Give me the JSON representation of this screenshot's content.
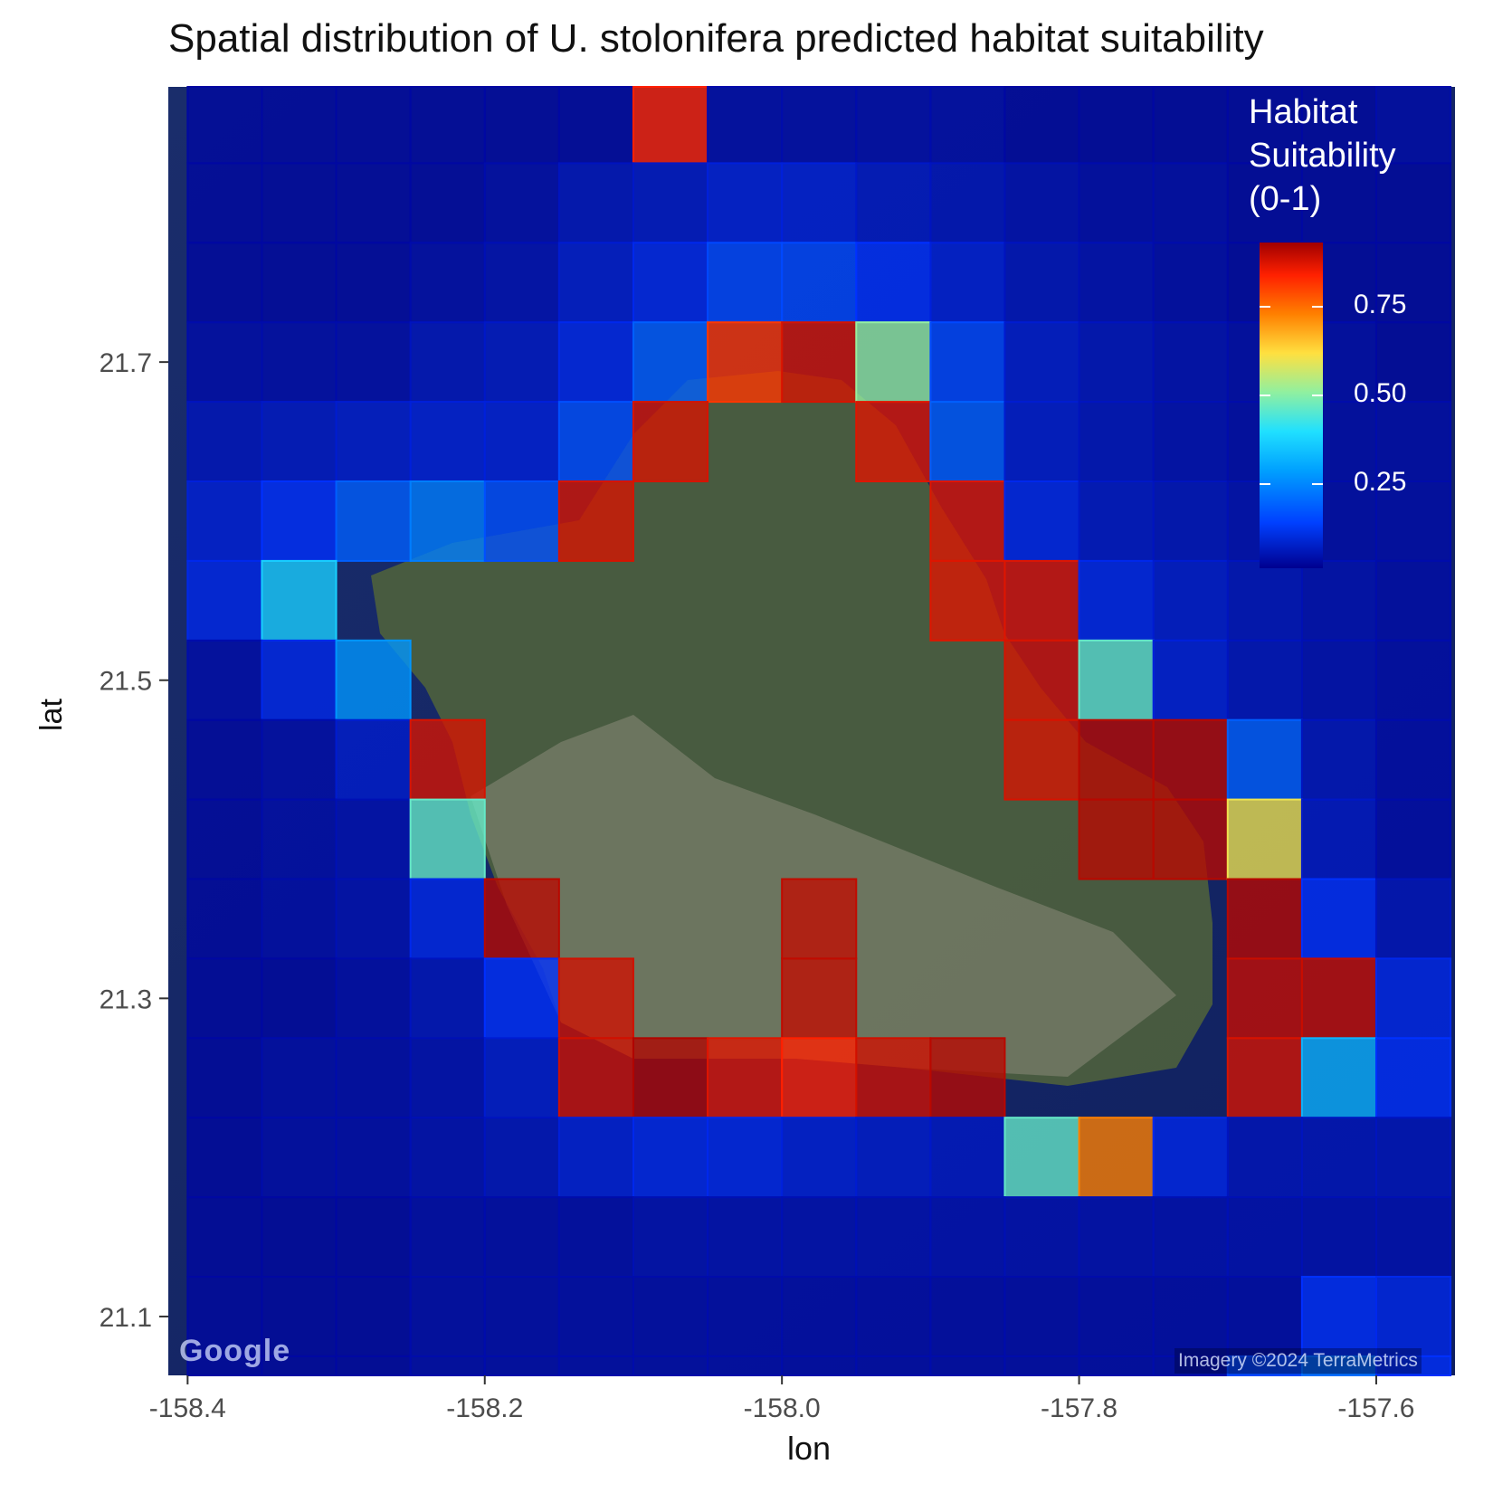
{
  "title": "Spatial distribution of U. stolonifera predicted habitat suitability",
  "attribution": {
    "logo": "Google",
    "imagery": "Imagery ©2024 TerraMetrics"
  },
  "legend": {
    "title_lines": [
      "Habitat",
      "Suitability",
      "(0-1)"
    ],
    "ticks": [
      "0.75",
      "0.50",
      "0.25"
    ],
    "colors": [
      "#00008f",
      "#0040ff",
      "#00a0ff",
      "#20e0ff",
      "#90f0a0",
      "#ffe040",
      "#ff8000",
      "#ff2000",
      "#a00000"
    ]
  },
  "chart_data": {
    "type": "heatmap",
    "title": "Spatial distribution of U. stolonifera predicted habitat suitability",
    "xlabel": "lon",
    "ylabel": "lat",
    "xlim": [
      -158.413,
      -157.547
    ],
    "ylim": [
      21.063,
      21.873
    ],
    "x_ticks": [
      "-158.4",
      "-158.2",
      "-158.0",
      "-157.8",
      "-157.6"
    ],
    "y_ticks": [
      "21.1",
      "21.3",
      "21.5",
      "21.7"
    ],
    "cell_size_deg": 0.05,
    "col_centers_lon": [
      -158.375,
      -158.325,
      -158.275,
      -158.225,
      -158.175,
      -158.125,
      -158.075,
      -158.025,
      -157.975,
      -157.925,
      -157.875,
      -157.825,
      -157.775,
      -157.725,
      -157.675,
      -157.625,
      -157.575
    ],
    "row_centers_lat": [
      21.85,
      21.8,
      21.75,
      21.7,
      21.65,
      21.6,
      21.55,
      21.5,
      21.45,
      21.4,
      21.35,
      21.3,
      21.25,
      21.2,
      21.15,
      21.1,
      21.05
    ],
    "legend_title": "Habitat Suitability (0-1)",
    "legend_range": [
      0,
      1
    ],
    "values": [
      [
        0.02,
        0.02,
        0.02,
        0.02,
        0.02,
        0.02,
        0.88,
        0.03,
        0.03,
        0.03,
        0.03,
        0.02,
        0.02,
        0.02,
        0.02,
        0.02,
        0.03
      ],
      [
        0.02,
        0.02,
        0.02,
        0.02,
        0.03,
        0.05,
        0.06,
        0.08,
        0.08,
        0.06,
        0.05,
        0.04,
        0.03,
        0.03,
        0.02,
        0.02,
        0.02
      ],
      [
        0.02,
        0.02,
        0.02,
        0.03,
        0.04,
        0.07,
        0.1,
        0.15,
        0.15,
        0.12,
        0.08,
        0.05,
        0.04,
        0.03,
        0.02,
        0.02,
        0.02
      ],
      [
        0.03,
        0.03,
        0.03,
        0.05,
        0.06,
        0.1,
        0.18,
        0.85,
        0.93,
        0.5,
        0.15,
        0.07,
        0.05,
        0.04,
        0.03,
        0.03,
        0.02
      ],
      [
        0.05,
        0.06,
        0.07,
        0.08,
        0.08,
        0.16,
        0.93,
        null,
        null,
        0.92,
        0.18,
        0.07,
        0.05,
        0.04,
        0.03,
        0.03,
        0.03
      ],
      [
        0.08,
        0.12,
        0.18,
        0.22,
        0.16,
        0.93,
        null,
        null,
        null,
        null,
        0.92,
        0.1,
        0.06,
        0.05,
        0.04,
        0.03,
        0.03
      ],
      [
        0.1,
        0.35,
        null,
        null,
        null,
        null,
        null,
        null,
        null,
        null,
        0.92,
        0.92,
        0.1,
        0.07,
        0.05,
        0.04,
        0.03
      ],
      [
        0.03,
        0.1,
        0.25,
        null,
        null,
        null,
        null,
        null,
        null,
        null,
        null,
        0.93,
        0.45,
        0.08,
        0.05,
        0.04,
        0.03
      ],
      [
        0.02,
        0.03,
        0.07,
        0.93,
        null,
        null,
        null,
        null,
        null,
        null,
        null,
        0.93,
        0.97,
        0.97,
        0.18,
        0.05,
        0.03
      ],
      [
        0.02,
        0.03,
        0.04,
        0.45,
        null,
        null,
        null,
        null,
        null,
        null,
        null,
        null,
        0.97,
        0.97,
        0.6,
        0.06,
        0.03
      ],
      [
        0.02,
        0.03,
        0.04,
        0.1,
        0.97,
        null,
        null,
        null,
        0.96,
        null,
        null,
        null,
        null,
        null,
        0.97,
        0.12,
        0.05
      ],
      [
        0.02,
        0.02,
        0.03,
        0.05,
        0.12,
        0.94,
        null,
        null,
        0.96,
        null,
        null,
        null,
        null,
        null,
        0.95,
        0.95,
        0.1
      ],
      [
        0.02,
        0.03,
        0.03,
        0.04,
        0.07,
        0.94,
        0.98,
        0.92,
        0.88,
        0.94,
        0.97,
        null,
        null,
        null,
        0.93,
        0.3,
        0.12
      ],
      [
        0.02,
        0.03,
        0.03,
        0.04,
        0.05,
        0.08,
        0.1,
        0.1,
        0.08,
        0.07,
        0.06,
        0.45,
        0.75,
        0.1,
        0.05,
        0.05,
        0.05
      ],
      [
        0.02,
        0.02,
        0.02,
        0.03,
        0.03,
        0.03,
        0.04,
        0.04,
        0.04,
        0.04,
        0.04,
        0.04,
        0.04,
        0.04,
        0.04,
        0.04,
        0.04
      ],
      [
        0.02,
        0.02,
        0.02,
        0.03,
        0.03,
        0.03,
        0.03,
        0.03,
        0.03,
        0.03,
        0.03,
        0.03,
        0.03,
        0.03,
        0.03,
        0.12,
        0.1
      ],
      [
        0.02,
        0.02,
        0.02,
        0.03,
        0.03,
        0.03,
        0.03,
        0.03,
        0.03,
        0.03,
        0.03,
        0.03,
        0.03,
        0.03,
        0.15,
        0.2,
        0.12
      ]
    ]
  }
}
